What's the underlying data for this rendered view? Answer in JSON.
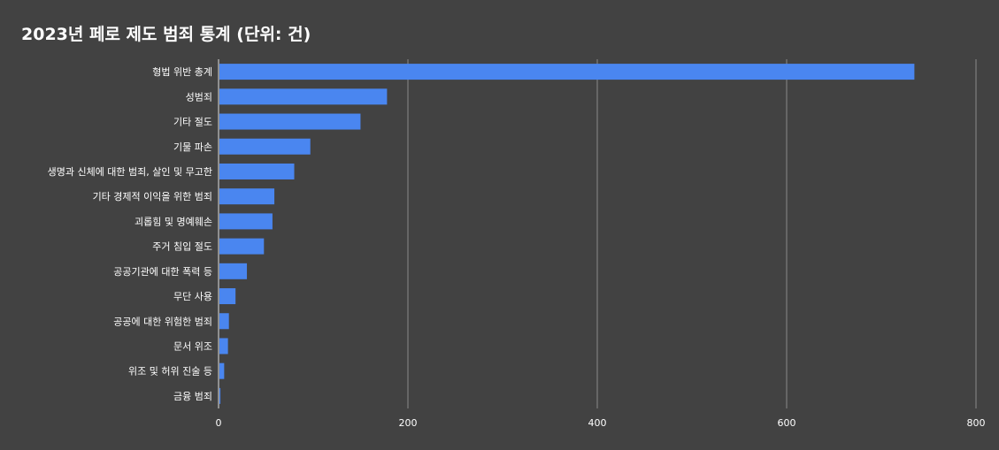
{
  "chart_data": {
    "type": "bar",
    "orientation": "horizontal",
    "title": "2023년 페로 제도 범죄 통계 (단위: 건)",
    "xlabel": "",
    "ylabel": "",
    "categories": [
      "형법 위반 총계",
      "성범죄",
      "기타 절도",
      "기물 파손",
      "생명과 신체에 대한 범죄, 살인 및 무고한",
      "기타 경제적 이익을 위한 범죄",
      "괴롭힘 및 명예훼손",
      "주거 침입 절도",
      "공공기관에 대한 폭력 등",
      "무단 사용",
      "공공에 대한 위험한 범죄",
      "문서 위조",
      "위조 및 허위 진술 등",
      "금융 범죄"
    ],
    "values": [
      734,
      177,
      149,
      96,
      79,
      58,
      56,
      47,
      29,
      17,
      10,
      9,
      5,
      1
    ],
    "xlim": [
      0,
      800
    ],
    "ticks": [
      "0",
      "200",
      "400",
      "600",
      "800"
    ],
    "grid": true,
    "legend": "none",
    "colors": {
      "background": "#424242",
      "bar": "#4a86f0",
      "grid": "#8a8a8a",
      "text": "#ffffff"
    }
  }
}
